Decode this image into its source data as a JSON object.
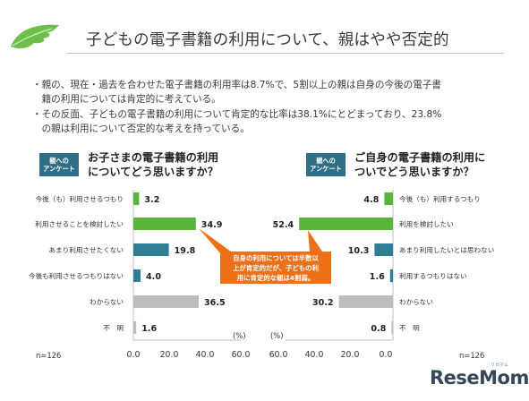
{
  "header": {
    "title": "子どもの電子書籍の利用について、親はやや否定的",
    "bullets": [
      "・親の、現在・過去を合わせた電子書籍の利用率は8.7%で、5割以上の親は自身の今後の電子書",
      "　籍の利用については肯定的に考えている。",
      "・その反面、子どもの電子書籍の利用について肯定的な比率は38.1%にとどまっており、23.8%",
      "　の親は利用について否定的な考えを持っている。"
    ]
  },
  "left_panel": {
    "badge_line1": "親への",
    "badge_line2": "アンケート",
    "question_line1": "お子さまの電子書籍の利用",
    "question_line2": "についてどう思いますか？",
    "n_label": "n=126",
    "unit_label": "(%)"
  },
  "right_panel": {
    "badge_line1": "親への",
    "badge_line2": "アンケート",
    "question_line1": "ご自身の電子書籍の利用に",
    "question_line2": "ついでどう思いますか？",
    "n_label": "n=126",
    "unit_label": "(%)"
  },
  "callout": {
    "line1": "自身の利用については半数以",
    "line2": "上が肯定的だが、子どもの利",
    "line3": "用に肯定的な親は4割弱。"
  },
  "logo": {
    "text": "ReseMom",
    "sub": "リセマム"
  },
  "colors": {
    "green": "#5ab43a",
    "teal": "#2e7f96",
    "gray": "#bdbdbd",
    "orange": "#ec7018",
    "leaf": "#6bbf4a"
  },
  "chart_data": [
    {
      "type": "bar",
      "orientation": "horizontal",
      "direction": "left-to-right",
      "categories": [
        "今後（も）利用させるつもり",
        "利用させることを検討したい",
        "あまり利用させたくない",
        "今後も利用させるつもりはない",
        "わからない",
        "不　明"
      ],
      "values": [
        3.2,
        34.9,
        19.8,
        4.0,
        36.5,
        1.6
      ],
      "value_labels": [
        "3.2",
        "34.9",
        "19.8",
        "4.0",
        "36.5",
        "1.6"
      ],
      "bar_colors": [
        "green",
        "green",
        "teal",
        "teal",
        "gray",
        "gray"
      ],
      "xlim": [
        0,
        60
      ],
      "ticks": [
        "0.0",
        "20.0",
        "40.0",
        "60.0"
      ]
    },
    {
      "type": "bar",
      "orientation": "horizontal",
      "direction": "right-to-left",
      "categories": [
        "今後（も）利用するつもり",
        "利用を検討したい",
        "あまり利用したいとは思わない",
        "利用するつもりはない",
        "わからない",
        "不　明"
      ],
      "values": [
        4.8,
        52.4,
        10.3,
        1.6,
        30.2,
        0.8
      ],
      "value_labels": [
        "4.8",
        "52.4",
        "10.3",
        "1.6",
        "30.2",
        "0.8"
      ],
      "bar_colors": [
        "green",
        "green",
        "teal",
        "teal",
        "gray",
        "gray"
      ],
      "xlim": [
        0,
        60
      ],
      "ticks": [
        "60.0",
        "40.0",
        "20.0",
        "0.0"
      ]
    }
  ]
}
